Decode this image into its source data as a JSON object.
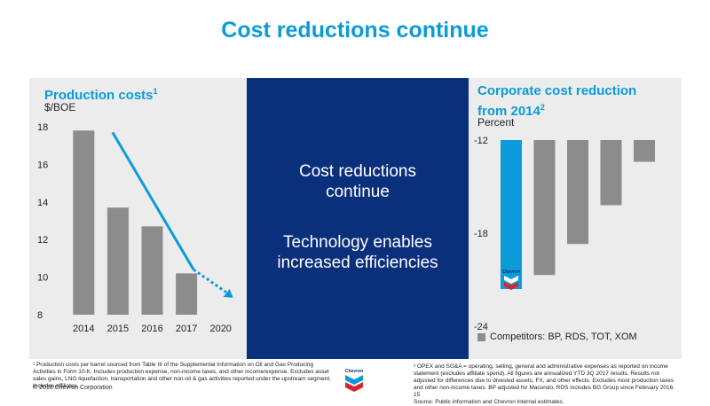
{
  "title": "Cost reductions continue",
  "left_panel": {
    "title": "Production costs",
    "title_sup": "1",
    "unit": "$/BOE"
  },
  "middle_panel": {
    "line1": "Cost reductions",
    "line2": "continue",
    "line3": "Technology enables",
    "line4": "increased efficiencies"
  },
  "right_panel": {
    "title_line1": "Corporate cost reduction",
    "title_line2": "from 2014",
    "title_sup": "2",
    "unit": "Percent",
    "legend_label": "Competitors: BP, RDS, TOT, XOM",
    "chevron_label": "Chevron"
  },
  "footnotes": {
    "left": "¹ Production costs per barrel sourced from Table III of the Supplemental Information on Oil and Gas Producing Activities in Form 10-K. Includes production expense, non-income taxes, and other income/expense. Excludes asset sales gains, LNG liquefaction, transportation and other non-oil & gas activities reported under the upstream segment. Includes affiliates.",
    "right": "² OPEX and SG&A = operating, selling, general and administrative expenses as reported on income statement (excludes affiliate spend). All figures are annualized YTD 3Q 2017 results. Results not adjusted for differences due to divested assets, FX, and other effects. Excludes most production taxes and other non-income taxes. BP adjusted for Macondo. RDS includes BG Group since February 2016.",
    "source": "Source: Public information and Chevron internal estimates.",
    "page_number": "15",
    "copyright": "© 2018 Chevron Corporation"
  },
  "colors": {
    "accent_blue": "#0b9bd8",
    "navy": "#0a2f7b",
    "bar_gray": "#8c8c8c",
    "panel_bg": "#ececec"
  },
  "chart_data": [
    {
      "type": "bar",
      "title": "Production costs",
      "ylabel": "$/BOE",
      "categories": [
        "2014",
        "2015",
        "2016",
        "2017",
        "2020"
      ],
      "values": [
        17.8,
        13.7,
        12.7,
        10.2,
        null
      ],
      "ylim": [
        8,
        18
      ],
      "yticks": [
        8,
        10,
        12,
        14,
        16,
        18
      ],
      "trend_arrow": {
        "from": [
          2015,
          17.7
        ],
        "to_solid": [
          2017,
          10.4
        ],
        "to_dashed": [
          2020,
          8.9
        ]
      }
    },
    {
      "type": "bar",
      "title": "Corporate cost reduction from 2014",
      "ylabel": "Percent",
      "series": [
        {
          "name": "Chevron",
          "values": [
            -21.6
          ]
        },
        {
          "name": "Competitors: BP, RDS, TOT, XOM",
          "values": [
            -20.7,
            -18.7,
            -16.2,
            -13.4
          ]
        }
      ],
      "ylim": [
        -24,
        -12
      ],
      "yticks": [
        -12,
        -18,
        -24
      ]
    }
  ]
}
